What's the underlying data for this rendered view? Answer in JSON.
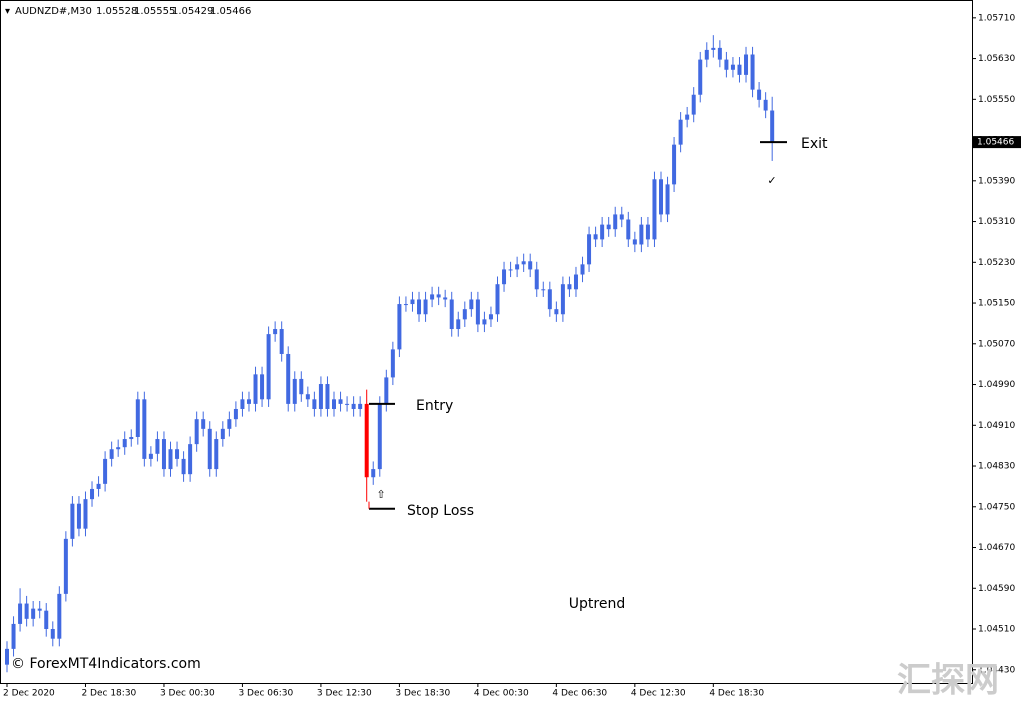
{
  "chart_data": {
    "type": "candlestick",
    "symbol": "AUDNZD#,M30",
    "color": "#4169e1",
    "highlight_candle": 55,
    "highlight_color": "#ff0000",
    "ylim": [
      1.04404,
      1.05745
    ],
    "yticks": [
      {
        "value": 1.0443,
        "label": "1.04430"
      },
      {
        "value": 1.0451,
        "label": "1.04510"
      },
      {
        "value": 1.0459,
        "label": "1.04590"
      },
      {
        "value": 1.0467,
        "label": "1.04670"
      },
      {
        "value": 1.0475,
        "label": "1.04750"
      },
      {
        "value": 1.0483,
        "label": "1.04830"
      },
      {
        "value": 1.0491,
        "label": "1.04910"
      },
      {
        "value": 1.0499,
        "label": "1.04990"
      },
      {
        "value": 1.0507,
        "label": "1.05070"
      },
      {
        "value": 1.0515,
        "label": "1.05150"
      },
      {
        "value": 1.0523,
        "label": "1.05230"
      },
      {
        "value": 1.0531,
        "label": "1.05310"
      },
      {
        "value": 1.0539,
        "label": "1.05390"
      },
      {
        "value": 1.0547,
        "label": "1.05470"
      },
      {
        "value": 1.0555,
        "label": "1.05550"
      },
      {
        "value": 1.0563,
        "label": "1.05630"
      },
      {
        "value": 1.0571,
        "label": "1.05710"
      }
    ],
    "categories": [
      "2 Dec 2020",
      null,
      null,
      null,
      null,
      null,
      null,
      null,
      null,
      null,
      null,
      null,
      "2 Dec 18:30",
      null,
      null,
      null,
      null,
      null,
      null,
      null,
      null,
      null,
      null,
      null,
      "3 Dec 00:30",
      null,
      null,
      null,
      null,
      null,
      null,
      null,
      null,
      null,
      null,
      null,
      "3 Dec 06:30",
      null,
      null,
      null,
      null,
      null,
      null,
      null,
      null,
      null,
      null,
      null,
      "3 Dec 12:30",
      null,
      null,
      null,
      null,
      null,
      null,
      null,
      null,
      null,
      null,
      null,
      "3 Dec 18:30",
      null,
      null,
      null,
      null,
      null,
      null,
      null,
      null,
      null,
      null,
      null,
      "4 Dec 00:30",
      null,
      null,
      null,
      null,
      null,
      null,
      null,
      null,
      null,
      null,
      null,
      "4 Dec 06:30",
      null,
      null,
      null,
      null,
      null,
      null,
      null,
      null,
      null,
      null,
      null,
      "4 Dec 12:30",
      null,
      null,
      null,
      null,
      null,
      null,
      null,
      null,
      null,
      null,
      null,
      "4 Dec 18:30",
      null,
      null,
      null,
      null,
      null,
      null,
      null,
      null,
      null
    ],
    "candles": [
      [
        1.0444,
        1.04486,
        1.04425,
        1.04471
      ],
      [
        1.04471,
        1.04535,
        1.04456,
        1.0452
      ],
      [
        1.0452,
        1.0459,
        1.04505,
        1.0456
      ],
      [
        1.0456,
        1.04575,
        1.04515,
        1.0453
      ],
      [
        1.0453,
        1.04565,
        1.04515,
        1.0455
      ],
      [
        1.0455,
        1.04565,
        1.04531,
        1.04546
      ],
      [
        1.04546,
        1.04561,
        1.04495,
        1.0451
      ],
      [
        1.0451,
        1.04525,
        1.04476,
        1.04491
      ],
      [
        1.04491,
        1.04594,
        1.04476,
        1.04579
      ],
      [
        1.04579,
        1.04702,
        1.04564,
        1.04687
      ],
      [
        1.04687,
        1.04771,
        1.04672,
        1.04756
      ],
      [
        1.04756,
        1.04771,
        1.04692,
        1.04707
      ],
      [
        1.04707,
        1.0478,
        1.04692,
        1.04765
      ],
      [
        1.04765,
        1.048,
        1.0475,
        1.04785
      ],
      [
        1.04785,
        1.0481,
        1.0477,
        1.04795
      ],
      [
        1.04795,
        1.04859,
        1.0478,
        1.04844
      ],
      [
        1.04844,
        1.04878,
        1.04829,
        1.04863
      ],
      [
        1.04863,
        1.04882,
        1.04848,
        1.04867
      ],
      [
        1.04867,
        1.04898,
        1.04852,
        1.04883
      ],
      [
        1.04883,
        1.04902,
        1.04868,
        1.04887
      ],
      [
        1.04887,
        1.04976,
        1.04872,
        1.04961
      ],
      [
        1.04961,
        1.04976,
        1.04829,
        1.04844
      ],
      [
        1.04844,
        1.04869,
        1.04829,
        1.04854
      ],
      [
        1.04854,
        1.04898,
        1.04839,
        1.04883
      ],
      [
        1.04883,
        1.04898,
        1.04809,
        1.04824
      ],
      [
        1.04824,
        1.04878,
        1.04809,
        1.04863
      ],
      [
        1.04863,
        1.04878,
        1.04829,
        1.04844
      ],
      [
        1.04844,
        1.04859,
        1.04799,
        1.04814
      ],
      [
        1.04814,
        1.04888,
        1.04799,
        1.04873
      ],
      [
        1.04873,
        1.04937,
        1.04858,
        1.04922
      ],
      [
        1.04922,
        1.04937,
        1.04888,
        1.04903
      ],
      [
        1.04903,
        1.04918,
        1.04809,
        1.04824
      ],
      [
        1.04824,
        1.04898,
        1.04809,
        1.04883
      ],
      [
        1.04883,
        1.04918,
        1.04868,
        1.04903
      ],
      [
        1.04903,
        1.04937,
        1.04888,
        1.04922
      ],
      [
        1.04922,
        1.04957,
        1.04907,
        1.04942
      ],
      [
        1.04942,
        1.04976,
        1.04927,
        1.04961
      ],
      [
        1.04961,
        1.04976,
        1.04937,
        1.04952
      ],
      [
        1.04952,
        1.05025,
        1.04937,
        1.0501
      ],
      [
        1.0501,
        1.05025,
        1.04946,
        1.04961
      ],
      [
        1.04961,
        1.05104,
        1.04946,
        1.05089
      ],
      [
        1.05089,
        1.05114,
        1.05074,
        1.05099
      ],
      [
        1.05099,
        1.05114,
        1.05035,
        1.0505
      ],
      [
        1.0505,
        1.05065,
        1.04937,
        1.04952
      ],
      [
        1.04952,
        1.05016,
        1.04937,
        1.05001
      ],
      [
        1.05001,
        1.05016,
        1.04956,
        1.04971
      ],
      [
        1.04971,
        1.04986,
        1.04946,
        1.04961
      ],
      [
        1.04961,
        1.04976,
        1.04927,
        1.04942
      ],
      [
        1.04942,
        1.05006,
        1.04927,
        1.04991
      ],
      [
        1.04991,
        1.05006,
        1.04927,
        1.04942
      ],
      [
        1.04942,
        1.04976,
        1.04927,
        1.04961
      ],
      [
        1.04961,
        1.04976,
        1.04937,
        1.04952
      ],
      [
        1.04952,
        1.04967,
        1.04937,
        1.04952
      ],
      [
        1.04952,
        1.04967,
        1.04927,
        1.04942
      ],
      [
        1.04942,
        1.04967,
        1.04927,
        1.04952
      ],
      [
        1.04952,
        1.0498,
        1.0476,
        1.04808
      ],
      [
        1.04808,
        1.04839,
        1.04793,
        1.04824
      ],
      [
        1.04824,
        1.04967,
        1.04809,
        1.04952
      ],
      [
        1.04952,
        1.05019,
        1.04937,
        1.05004
      ],
      [
        1.05004,
        1.05074,
        1.04989,
        1.05059
      ],
      [
        1.05059,
        1.05163,
        1.05044,
        1.05148
      ],
      [
        1.05148,
        1.05163,
        1.05133,
        1.05148
      ],
      [
        1.05148,
        1.05172,
        1.05133,
        1.05157
      ],
      [
        1.05157,
        1.05172,
        1.05113,
        1.05128
      ],
      [
        1.05128,
        1.05172,
        1.05113,
        1.05157
      ],
      [
        1.05157,
        1.05182,
        1.05142,
        1.05167
      ],
      [
        1.05167,
        1.05182,
        1.05146,
        1.05161
      ],
      [
        1.05161,
        1.05176,
        1.05142,
        1.05157
      ],
      [
        1.05157,
        1.05172,
        1.05084,
        1.05099
      ],
      [
        1.05099,
        1.05133,
        1.05084,
        1.05118
      ],
      [
        1.05118,
        1.05153,
        1.05103,
        1.05138
      ],
      [
        1.05138,
        1.05172,
        1.05123,
        1.05157
      ],
      [
        1.05157,
        1.05172,
        1.05093,
        1.05108
      ],
      [
        1.05108,
        1.05133,
        1.05093,
        1.05118
      ],
      [
        1.05118,
        1.05143,
        1.05103,
        1.05128
      ],
      [
        1.05128,
        1.05202,
        1.05113,
        1.05187
      ],
      [
        1.05187,
        1.05231,
        1.05172,
        1.05216
      ],
      [
        1.05216,
        1.05231,
        1.05201,
        1.05216
      ],
      [
        1.05216,
        1.05241,
        1.05201,
        1.05226
      ],
      [
        1.05226,
        1.05247,
        1.05211,
        1.05232
      ],
      [
        1.05232,
        1.05247,
        1.05201,
        1.05216
      ],
      [
        1.05216,
        1.05231,
        1.05162,
        1.05177
      ],
      [
        1.05177,
        1.05192,
        1.05162,
        1.05177
      ],
      [
        1.05177,
        1.05192,
        1.05123,
        1.05138
      ],
      [
        1.05138,
        1.05153,
        1.05113,
        1.05128
      ],
      [
        1.05128,
        1.05202,
        1.05113,
        1.05187
      ],
      [
        1.05187,
        1.05202,
        1.05162,
        1.05177
      ],
      [
        1.05177,
        1.05221,
        1.05162,
        1.05206
      ],
      [
        1.05206,
        1.05241,
        1.05191,
        1.05226
      ],
      [
        1.05226,
        1.053,
        1.05211,
        1.05285
      ],
      [
        1.05285,
        1.053,
        1.0526,
        1.05275
      ],
      [
        1.05275,
        1.05319,
        1.0526,
        1.05304
      ],
      [
        1.05304,
        1.05319,
        1.0528,
        1.05295
      ],
      [
        1.05295,
        1.05339,
        1.0528,
        1.05324
      ],
      [
        1.05324,
        1.05339,
        1.05299,
        1.05314
      ],
      [
        1.05314,
        1.05329,
        1.0526,
        1.05275
      ],
      [
        1.05275,
        1.0529,
        1.0525,
        1.05265
      ],
      [
        1.05265,
        1.05319,
        1.0525,
        1.05304
      ],
      [
        1.05304,
        1.05319,
        1.0526,
        1.05275
      ],
      [
        1.05275,
        1.05408,
        1.0526,
        1.05393
      ],
      [
        1.05393,
        1.05408,
        1.05309,
        1.05324
      ],
      [
        1.05324,
        1.05398,
        1.05309,
        1.05383
      ],
      [
        1.05383,
        1.05476,
        1.05368,
        1.05461
      ],
      [
        1.05461,
        1.05525,
        1.05446,
        1.0551
      ],
      [
        1.0551,
        1.05535,
        1.05495,
        1.0552
      ],
      [
        1.0552,
        1.05574,
        1.05505,
        1.05559
      ],
      [
        1.05559,
        1.05643,
        1.05544,
        1.05628
      ],
      [
        1.05628,
        1.05662,
        1.05613,
        1.05647
      ],
      [
        1.05647,
        1.05676,
        1.05632,
        1.05651
      ],
      [
        1.05651,
        1.05666,
        1.05613,
        1.05628
      ],
      [
        1.05628,
        1.05643,
        1.05593,
        1.05608
      ],
      [
        1.05608,
        1.05633,
        1.05593,
        1.05618
      ],
      [
        1.05618,
        1.05633,
        1.05583,
        1.05598
      ],
      [
        1.05598,
        1.05653,
        1.05583,
        1.05638
      ],
      [
        1.05638,
        1.05653,
        1.05554,
        1.05569
      ],
      [
        1.05569,
        1.05584,
        1.05534,
        1.05549
      ],
      [
        1.05549,
        1.05564,
        1.05513,
        1.05528
      ],
      [
        1.05528,
        1.05555,
        1.05429,
        1.05466
      ]
    ],
    "annotations": [
      {
        "text": "Entry",
        "value": 1.04952
      },
      {
        "text": "Stop Loss",
        "value": 1.04746
      },
      {
        "text": "Exit",
        "value": 1.05466
      }
    ],
    "arrow": "⇧",
    "check": "✓",
    "trend_label": "Uptrend",
    "copyright": "© ForexMT4Indicators.com",
    "watermark": "汇探网"
  }
}
